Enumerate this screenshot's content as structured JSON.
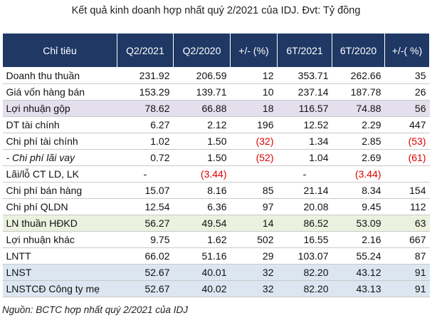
{
  "title": "Kết quả kinh doanh hợp nhất quý 2/2021 của IDJ. Đvt: Tỷ đồng",
  "table": {
    "headers": [
      "Chỉ tiêu",
      "Q2/2021",
      "Q2/2020",
      "+/- (%)",
      "6T/2021",
      "6T/2020",
      "+/-( %)"
    ],
    "rows": [
      {
        "label": "Doanh thu thuần",
        "q2_2021": "231.92",
        "q2_2020": "206.59",
        "q_pct": "12",
        "h1_2021": "353.71",
        "h1_2020": "262.66",
        "h_pct": "35"
      },
      {
        "label": "Giá vốn hàng bán",
        "q2_2021": "153.29",
        "q2_2020": "139.71",
        "q_pct": "10",
        "h1_2021": "237.14",
        "h1_2020": "187.78",
        "h_pct": "26"
      },
      {
        "label": "Lợi nhuận gộp",
        "q2_2021": "78.62",
        "q2_2020": "66.88",
        "q_pct": "18",
        "h1_2021": "116.57",
        "h1_2020": "74.88",
        "h_pct": "56"
      },
      {
        "label": "DT tài chính",
        "q2_2021": "6.27",
        "q2_2020": "2.12",
        "q_pct": "196",
        "h1_2021": "12.52",
        "h1_2020": "2.29",
        "h_pct": "447"
      },
      {
        "label": "Chi phí tài chính",
        "q2_2021": "1.02",
        "q2_2020": "1.50",
        "q_pct": "(32)",
        "h1_2021": "1.34",
        "h1_2020": "2.85",
        "h_pct": "(53)"
      },
      {
        "label": "- Chi phí lãi vay",
        "q2_2021": "0.72",
        "q2_2020": "1.50",
        "q_pct": "(52)",
        "h1_2021": "1.04",
        "h1_2020": "2.69",
        "h_pct": "(61)"
      },
      {
        "label": "Lãi/lỗ CT LD, LK",
        "q2_2021": "-",
        "q2_2020": "(3.44)",
        "q_pct": "",
        "h1_2021": "-",
        "h1_2020": "(3.44)",
        "h_pct": ""
      },
      {
        "label": "Chi phí bán hàng",
        "q2_2021": "15.07",
        "q2_2020": "8.16",
        "q_pct": "85",
        "h1_2021": "21.14",
        "h1_2020": "8.34",
        "h_pct": "154"
      },
      {
        "label": "Chi phí QLDN",
        "q2_2021": "12.54",
        "q2_2020": "6.36",
        "q_pct": "97",
        "h1_2021": "20.08",
        "h1_2020": "9.45",
        "h_pct": "112"
      },
      {
        "label": "LN thuần HĐKD",
        "q2_2021": "56.27",
        "q2_2020": "49.54",
        "q_pct": "14",
        "h1_2021": "86.52",
        "h1_2020": "53.09",
        "h_pct": "63"
      },
      {
        "label": "Lợi nhuận khác",
        "q2_2021": "9.75",
        "q2_2020": "1.62",
        "q_pct": "502",
        "h1_2021": "16.55",
        "h1_2020": "2.16",
        "h_pct": "667"
      },
      {
        "label": "LNTT",
        "q2_2021": "66.02",
        "q2_2020": "51.16",
        "q_pct": "29",
        "h1_2021": "103.07",
        "h1_2020": "55.24",
        "h_pct": "87"
      },
      {
        "label": "LNST",
        "q2_2021": "52.67",
        "q2_2020": "40.01",
        "q_pct": "32",
        "h1_2021": "82.20",
        "h1_2020": "43.12",
        "h_pct": "91"
      },
      {
        "label": "LNSTCĐ Công ty mẹ",
        "q2_2021": "52.67",
        "q2_2020": "40.02",
        "q_pct": "32",
        "h1_2021": "82.20",
        "h1_2020": "43.13",
        "h_pct": "91"
      }
    ]
  },
  "source": "Nguồn: BCTC hợp nhất quý 2/2021 của IDJ",
  "colors": {
    "header_bg": "#1f3864",
    "negative": "#e00000",
    "row_purple": "#e4dfec",
    "row_green": "#ebf1de",
    "row_blue": "#dce6f1"
  }
}
